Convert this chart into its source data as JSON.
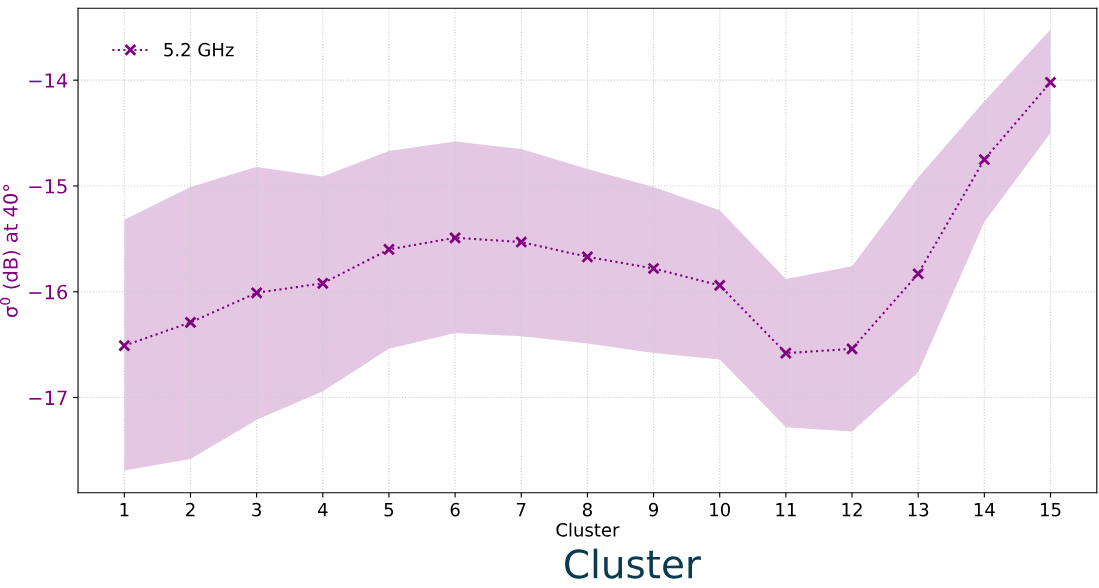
{
  "chart_data": {
    "type": "line",
    "xlabel": "Cluster",
    "ylabel": "σ$^{0}$ (dB) at 40°",
    "x": [
      1,
      2,
      3,
      4,
      5,
      6,
      7,
      8,
      9,
      10,
      11,
      12,
      13,
      14,
      15
    ],
    "series": [
      {
        "name": "5.2 GHz",
        "color": "#800080",
        "values": [
          -16.51,
          -16.29,
          -16.01,
          -15.92,
          -15.6,
          -15.49,
          -15.53,
          -15.67,
          -15.78,
          -15.94,
          -16.58,
          -16.54,
          -15.83,
          -14.75,
          -14.02
        ],
        "upper": [
          -15.32,
          -15.01,
          -14.82,
          -14.91,
          -14.67,
          -14.58,
          -14.65,
          -14.84,
          -15.01,
          -15.23,
          -15.88,
          -15.76,
          -14.92,
          -14.2,
          -13.52
        ],
        "lower": [
          -17.69,
          -17.58,
          -17.21,
          -16.94,
          -16.54,
          -16.39,
          -16.42,
          -16.49,
          -16.58,
          -16.64,
          -17.28,
          -17.32,
          -16.76,
          -15.34,
          -14.5
        ]
      }
    ],
    "xlim": [
      0.3,
      15.7
    ],
    "xticks": [
      1,
      2,
      3,
      4,
      5,
      6,
      7,
      8,
      9,
      10,
      11,
      12,
      13,
      14,
      15
    ],
    "ylim": [
      -17.9,
      -13.32
    ],
    "yticks": [
      -17,
      -16,
      -15,
      -14
    ],
    "grid": true,
    "legend": "top left",
    "marker": "cross",
    "line_style": "dotted",
    "annotations": [
      "Cluster"
    ]
  }
}
